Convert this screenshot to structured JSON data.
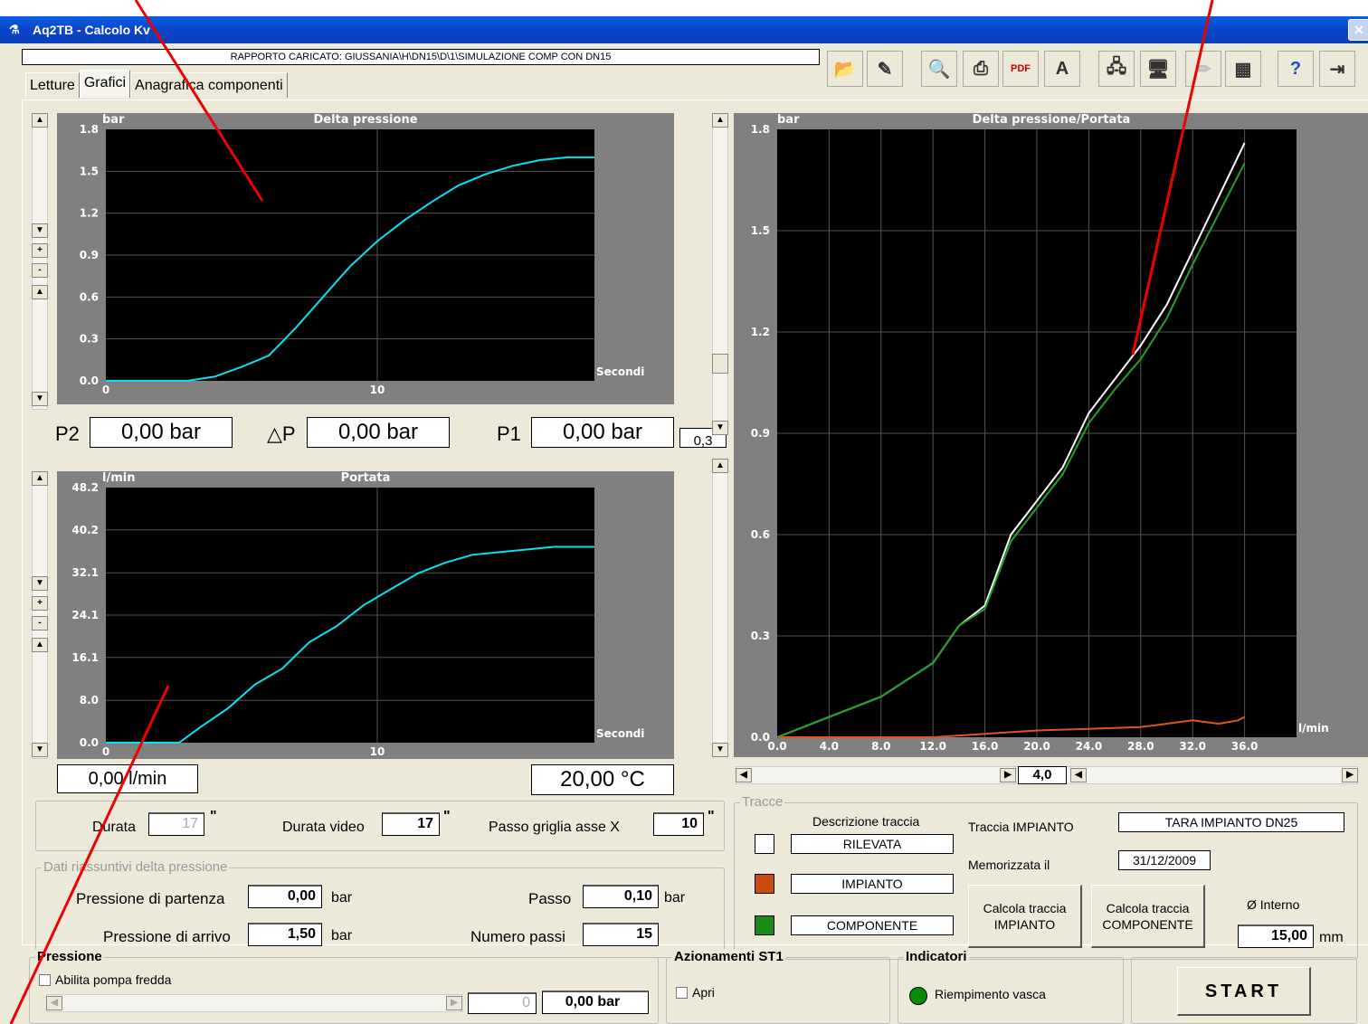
{
  "window": {
    "title": "Aq2TB - Calcolo Kv",
    "close_label": "✕"
  },
  "report_bar": "RAPPORTO CARICATO: GIUSSANIA\\H\\DN15\\D\\1\\SIMULAZIONE COMP CON DN15",
  "tabs": [
    {
      "label": "Letture"
    },
    {
      "label": "Grafici"
    },
    {
      "label": "Anagrafica componenti"
    }
  ],
  "toolbar": [
    "open-report-icon",
    "edit-report-icon",
    "preview-icon",
    "print-icon",
    "pdf-icon",
    "text-document-icon",
    "computer-network-icon",
    "computer-icon",
    "disabled-pen-icon",
    "spreadsheet-icon",
    "help-icon",
    "exit-icon"
  ],
  "pressure_chart": {
    "title": "Delta pressione",
    "unit": "bar",
    "x_unit": "Secondi",
    "y_ticks": [
      "1.8",
      "1.5",
      "1.2",
      "0.9",
      "0.6",
      "0.3",
      "0.0"
    ],
    "x_ticks": [
      "0",
      "10"
    ]
  },
  "flow_chart": {
    "title": "Portata",
    "unit": "l/min",
    "x_unit": "Secondi",
    "y_ticks": [
      "48.2",
      "40.2",
      "32.1",
      "24.1",
      "16.1",
      "8.0",
      "0.0"
    ],
    "x_ticks": [
      "0",
      "10"
    ]
  },
  "dp_chart": {
    "title": "Delta pressione/Portata",
    "unit": "bar",
    "x_unit": "l/min",
    "y_ticks": [
      "1.8",
      "1.5",
      "1.2",
      "0.9",
      "0.6",
      "0.3",
      "0.0"
    ],
    "x_ticks": [
      "0.0",
      "4.0",
      "8.0",
      "12.0",
      "16.0",
      "20.0",
      "24.0",
      "28.0",
      "32.0",
      "36.0"
    ]
  },
  "chart_data": [
    {
      "type": "line",
      "title": "Delta pressione",
      "ylabel": "bar",
      "xlabel": "Secondi",
      "ylim": [
        0,
        1.8
      ],
      "xlim": [
        0,
        18
      ],
      "series": [
        {
          "color": "#00e5ee",
          "x": [
            0,
            2,
            3,
            4,
            5,
            6,
            7,
            8,
            9,
            10,
            11,
            12,
            13,
            14,
            15,
            16,
            17,
            18
          ],
          "y": [
            0,
            0,
            0,
            0.03,
            0.1,
            0.18,
            0.38,
            0.6,
            0.82,
            1.0,
            1.15,
            1.28,
            1.4,
            1.48,
            1.54,
            1.58,
            1.6,
            1.6
          ]
        }
      ]
    },
    {
      "type": "line",
      "title": "Portata",
      "ylabel": "l/min",
      "xlabel": "Secondi",
      "ylim": [
        0,
        48.2
      ],
      "xlim": [
        0,
        18
      ],
      "series": [
        {
          "color": "#00e5ee",
          "x": [
            0,
            2.7,
            3.5,
            4.5,
            5.5,
            6.5,
            7.5,
            8.5,
            9.5,
            10.5,
            11.5,
            12.5,
            13.5,
            14.5,
            15.5,
            16.5,
            17.5,
            18
          ],
          "y": [
            0,
            0,
            3,
            6.5,
            11,
            14,
            19,
            22,
            26,
            29,
            32,
            34,
            35.5,
            36,
            36.5,
            37,
            37,
            37
          ]
        }
      ]
    },
    {
      "type": "line",
      "title": "Delta pressione/Portata",
      "ylabel": "bar",
      "xlabel": "l/min",
      "ylim": [
        0,
        1.8
      ],
      "xlim": [
        0,
        40
      ],
      "series": [
        {
          "name": "RILEVATA",
          "color": "#ffffff",
          "x": [
            0,
            4,
            8,
            12,
            14,
            16,
            18,
            20,
            22,
            24,
            26,
            28,
            30,
            32,
            34,
            36
          ],
          "y": [
            0,
            0.06,
            0.12,
            0.22,
            0.33,
            0.39,
            0.6,
            0.7,
            0.8,
            0.96,
            1.06,
            1.16,
            1.28,
            1.44,
            1.6,
            1.76
          ]
        },
        {
          "name": "IMPIANTO",
          "color": "#e0561a",
          "x": [
            0,
            8,
            12,
            16,
            20,
            24,
            28,
            32,
            34,
            35.5,
            36
          ],
          "y": [
            0,
            0,
            0,
            0.01,
            0.02,
            0.025,
            0.03,
            0.05,
            0.04,
            0.05,
            0.06
          ]
        },
        {
          "name": "COMPONENTE",
          "color": "#1fa12a",
          "x": [
            0,
            4,
            8,
            12,
            14,
            16,
            18,
            20,
            22,
            24,
            26,
            28,
            30,
            32,
            34,
            36
          ],
          "y": [
            0,
            0.06,
            0.12,
            0.22,
            0.33,
            0.38,
            0.58,
            0.68,
            0.78,
            0.93,
            1.03,
            1.12,
            1.24,
            1.4,
            1.55,
            1.7
          ]
        }
      ]
    }
  ],
  "readouts": {
    "p2_label": "P2",
    "p2": "0,00 bar",
    "dp_label": "△P",
    "dp": "0,00 bar",
    "p1_label": "P1",
    "p1": "0,00 bar",
    "flow": "0,00 l/min",
    "temp": "20,00 °C",
    "zoom_small": "0,3"
  },
  "duration": {
    "durata_label": "Durata",
    "durata": "17",
    "durata_video_label": "Durata video",
    "durata_video": "17",
    "passo_label": "Passo griglia asse X",
    "passo": "10",
    "sec": "\""
  },
  "summary": {
    "title": "Dati riassuntivi delta pressione",
    "partenza_label": "Pressione di partenza",
    "partenza": "0,00",
    "arrivo_label": "Pressione di arrivo",
    "arrivo": "1,50",
    "passo_label": "Passo",
    "passo": "0,10",
    "numero_label": "Numero passi",
    "numero": "15",
    "unit": "bar"
  },
  "scroll_value": "4,0",
  "tracce": {
    "title": "Tracce",
    "desc_label": "Descrizione traccia",
    "items": [
      {
        "label": "RILEVATA",
        "color": "#ffffff"
      },
      {
        "label": "IMPIANTO",
        "color": "#c94a12"
      },
      {
        "label": "COMPONENTE",
        "color": "#1a8a1a"
      }
    ],
    "impianto_label": "Traccia IMPIANTO",
    "impianto": "TARA IMPIANTO DN25",
    "memo_label": "Memorizzata il",
    "memo": "31/12/2009",
    "btn_imp": "Calcola traccia IMPIANTO",
    "btn_comp": "Calcola traccia COMPONENTE",
    "diam_label": "Ø Interno",
    "diam": "15,00",
    "diam_unit": "mm"
  },
  "pressione": {
    "title": "Pressione",
    "pump_label": "Abilita pompa fredda",
    "slider_value": "0",
    "value": "0,00 bar"
  },
  "azionamenti": {
    "title": "Azionamenti ST1",
    "apri": "Apri"
  },
  "indicatori": {
    "title": "Indicatori",
    "riempimento": "Riempimento vasca"
  },
  "start": "START"
}
